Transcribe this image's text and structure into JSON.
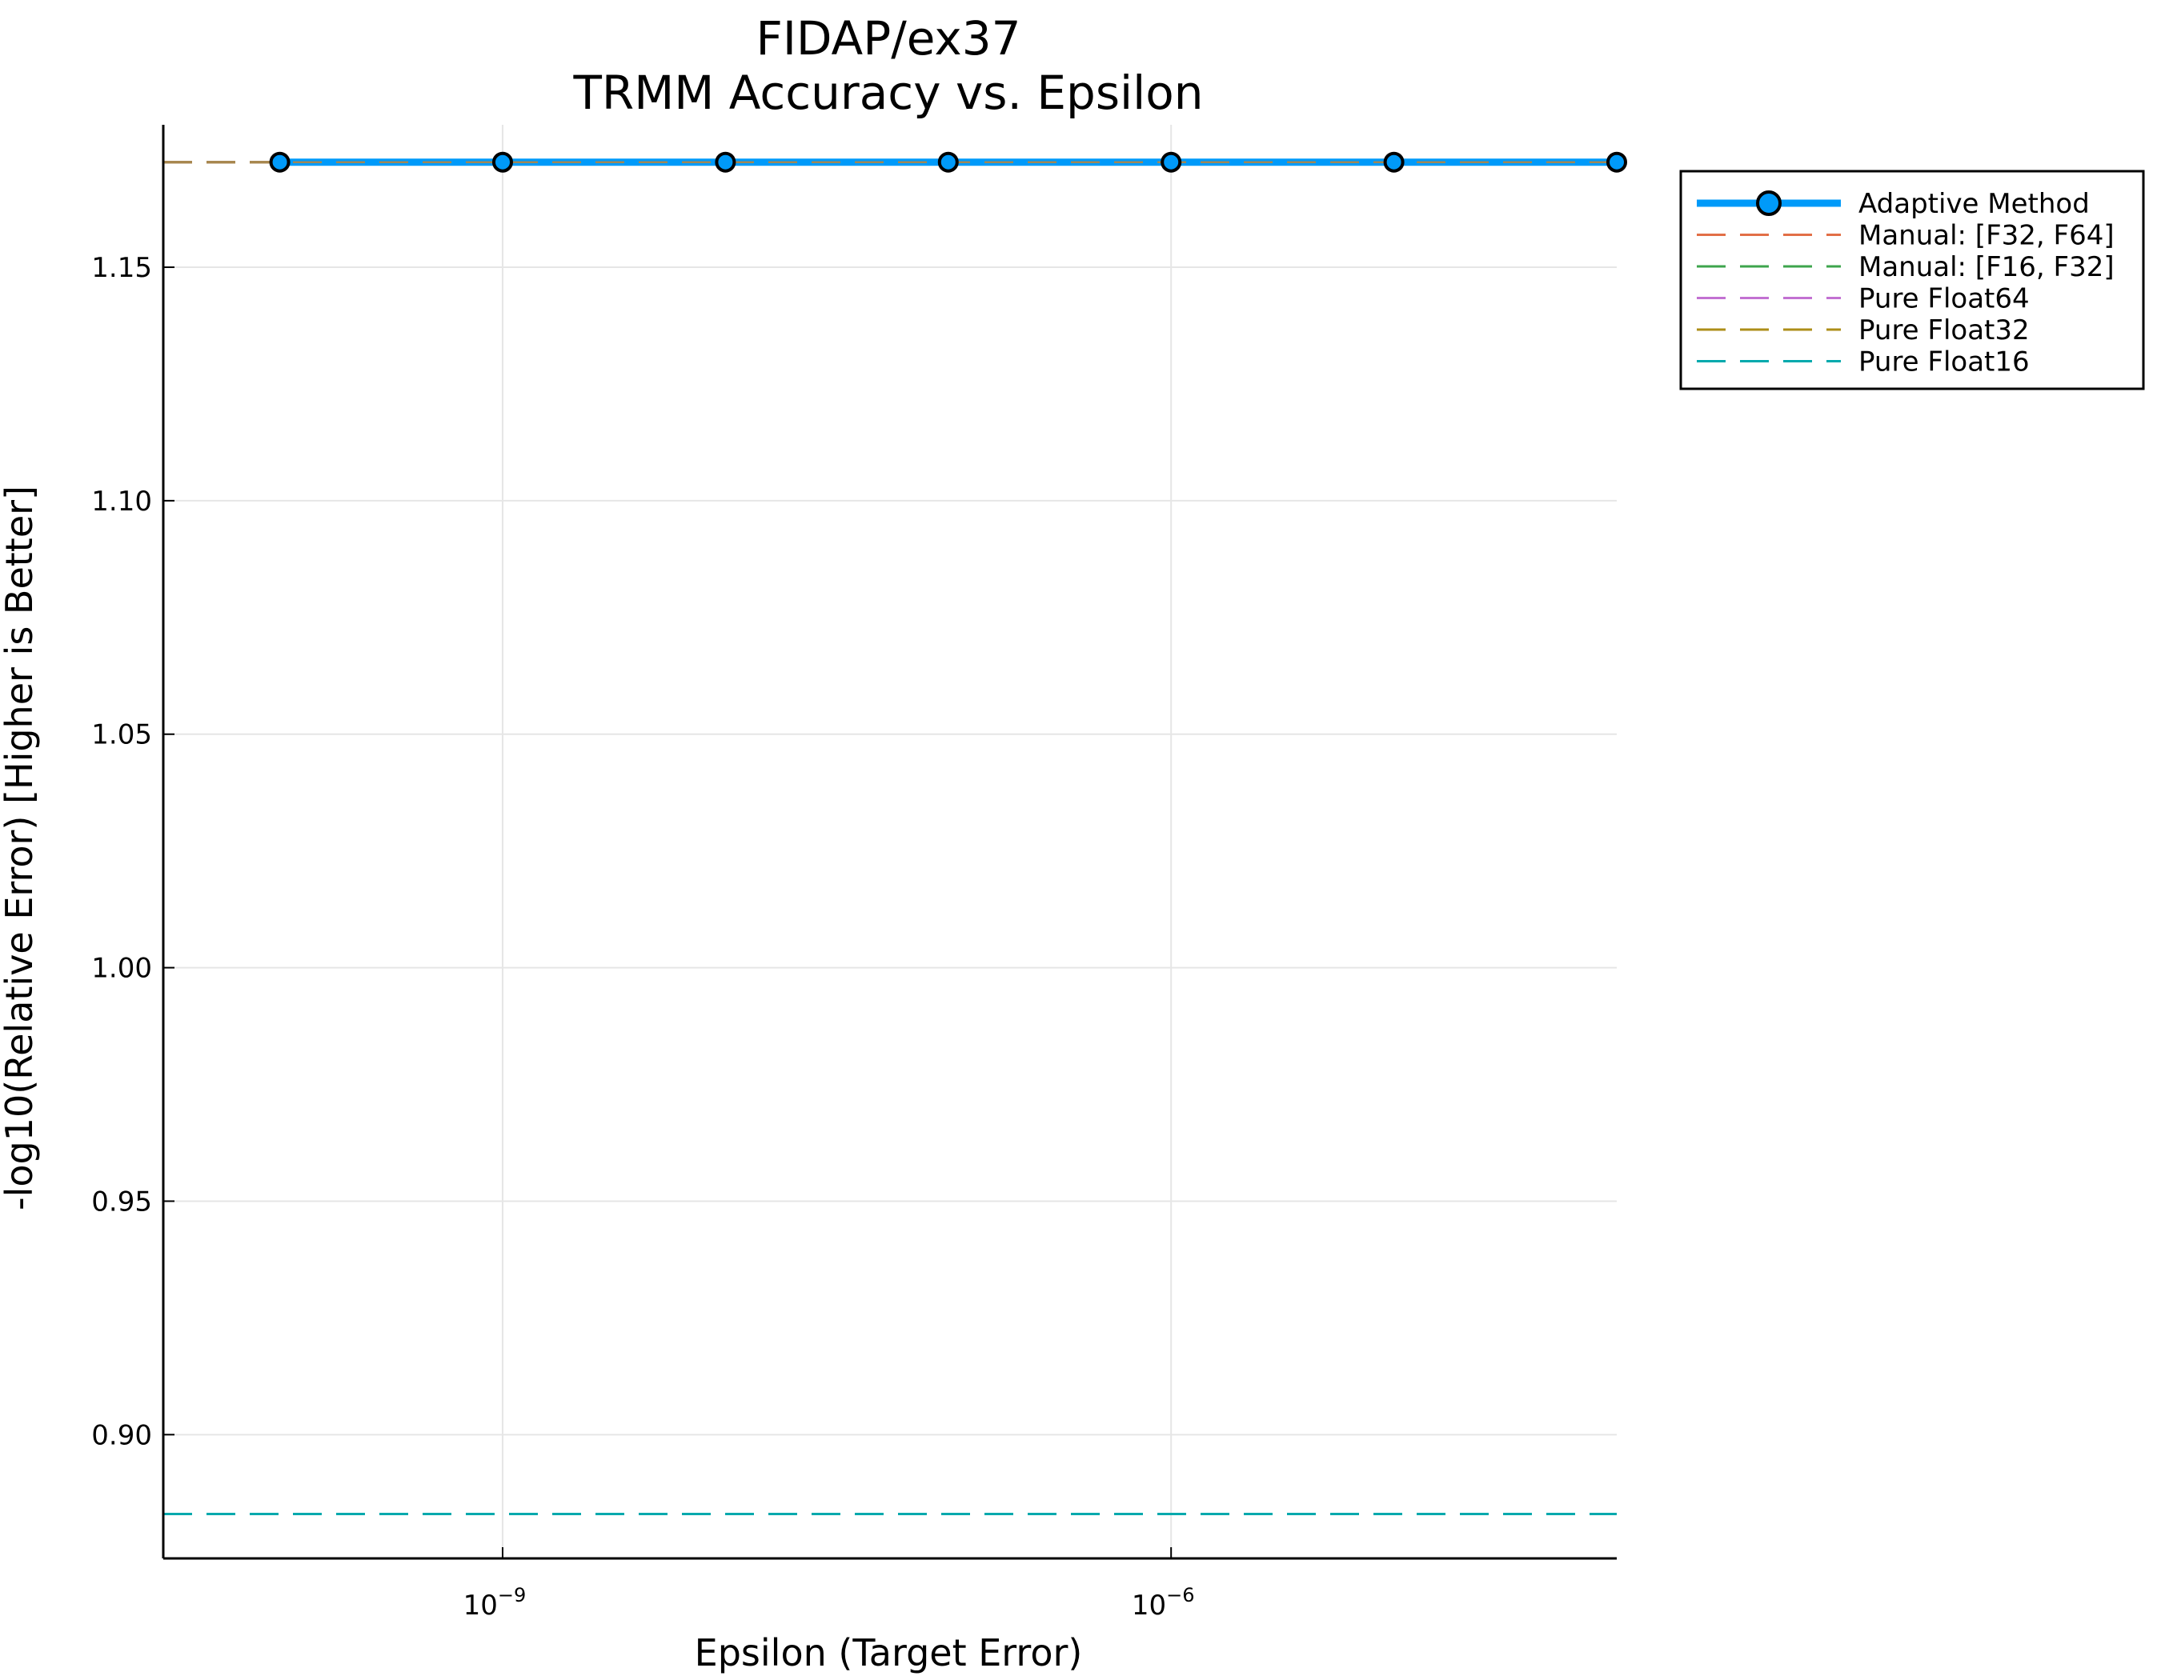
{
  "chart_data": {
    "type": "line",
    "title": "FIDAP/ex37",
    "subtitle": "TRMM Accuracy vs. Epsilon",
    "xlabel": "Epsilon (Target Error)",
    "ylabel": "-log10(Relative Error) [Higher is Better]",
    "xscale": "log",
    "xlim": [
      3e-11,
      0.0001
    ],
    "ylim": [
      0.8735,
      1.1805
    ],
    "x_ticks": [
      {
        "value": 1e-09,
        "base": "10",
        "exp": "−9"
      },
      {
        "value": 1e-06,
        "base": "10",
        "exp": "−6"
      }
    ],
    "y_ticks": [
      {
        "value": 0.9,
        "label": "0.90"
      },
      {
        "value": 0.95,
        "label": "0.95"
      },
      {
        "value": 1.0,
        "label": "1.00"
      },
      {
        "value": 1.05,
        "label": "1.05"
      },
      {
        "value": 1.1,
        "label": "1.10"
      },
      {
        "value": 1.15,
        "label": "1.15"
      }
    ],
    "grid": true,
    "legend_position": "outside-top-right",
    "series": [
      {
        "name": "Adaptive Method",
        "style": "solid-markers",
        "color": "#009af9",
        "x": [
          1e-10,
          1e-09,
          1e-08,
          1e-07,
          1e-06,
          1e-05,
          0.0001
        ],
        "y": [
          1.1725,
          1.1725,
          1.1725,
          1.1725,
          1.1725,
          1.1725,
          1.1725
        ]
      },
      {
        "name": "Manual: [F32, F64]",
        "style": "dashed",
        "color": "#e26f46",
        "y": 1.1725
      },
      {
        "name": "Manual: [F16, F32]",
        "style": "dashed",
        "color": "#3da44d",
        "y": 1.1725
      },
      {
        "name": "Pure Float64",
        "style": "dashed",
        "color": "#c271d2",
        "y": 1.1725
      },
      {
        "name": "Pure Float32",
        "style": "dashed",
        "color": "#ac8e18",
        "y": 1.1725
      },
      {
        "name": "Pure Float16",
        "style": "dashed",
        "color": "#00a9ad",
        "y": 0.883
      }
    ]
  }
}
